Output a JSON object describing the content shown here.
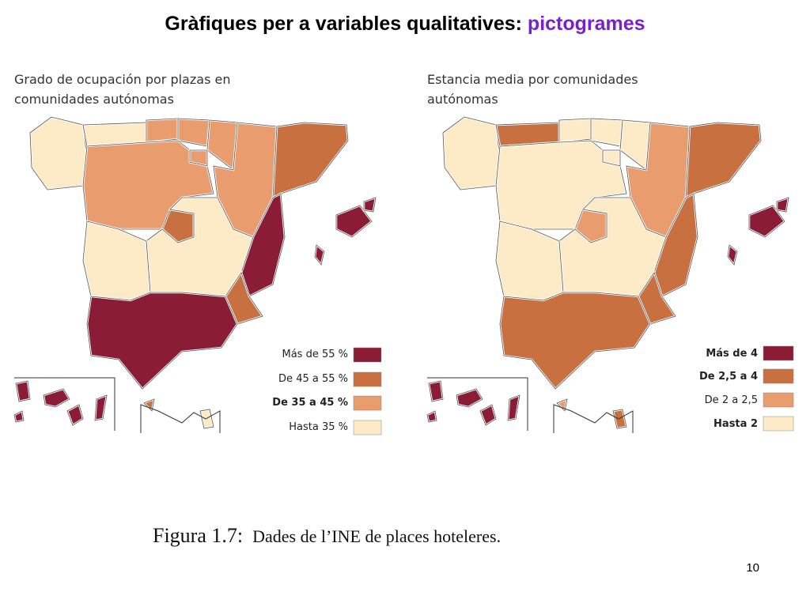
{
  "header": {
    "title": "Gràfiques per a variables qualitatives:",
    "highlight": "pictogrames"
  },
  "maps": [
    {
      "title_lines": [
        "Grado de ocupación por plazas en",
        "comunidades autónomas"
      ],
      "legend": [
        {
          "label": "Más de 55 %",
          "color": "#8b1c35"
        },
        {
          "label": "De 45 a 55 %",
          "color": "#c8703f"
        },
        {
          "label": "De 35 a 45 %",
          "color": "#e99c6e"
        },
        {
          "label": "Hasta 35 %",
          "color": "#fcebc6"
        }
      ]
    },
    {
      "title_lines": [
        "Estancia media por comunidades",
        "autónomas"
      ],
      "legend": [
        {
          "label": "Más de 4",
          "color": "#8b1c35"
        },
        {
          "label": "De 2,5 a 4",
          "color": "#c8703f"
        },
        {
          "label": "De 2 a 2,5",
          "color": "#e99c6e"
        },
        {
          "label": "Hasta 2",
          "color": "#fcebc6"
        }
      ]
    }
  ],
  "caption": {
    "label": "Figura 1.7:",
    "text": "Dades de l’INE de places hoteleres."
  },
  "page_number": "10"
}
